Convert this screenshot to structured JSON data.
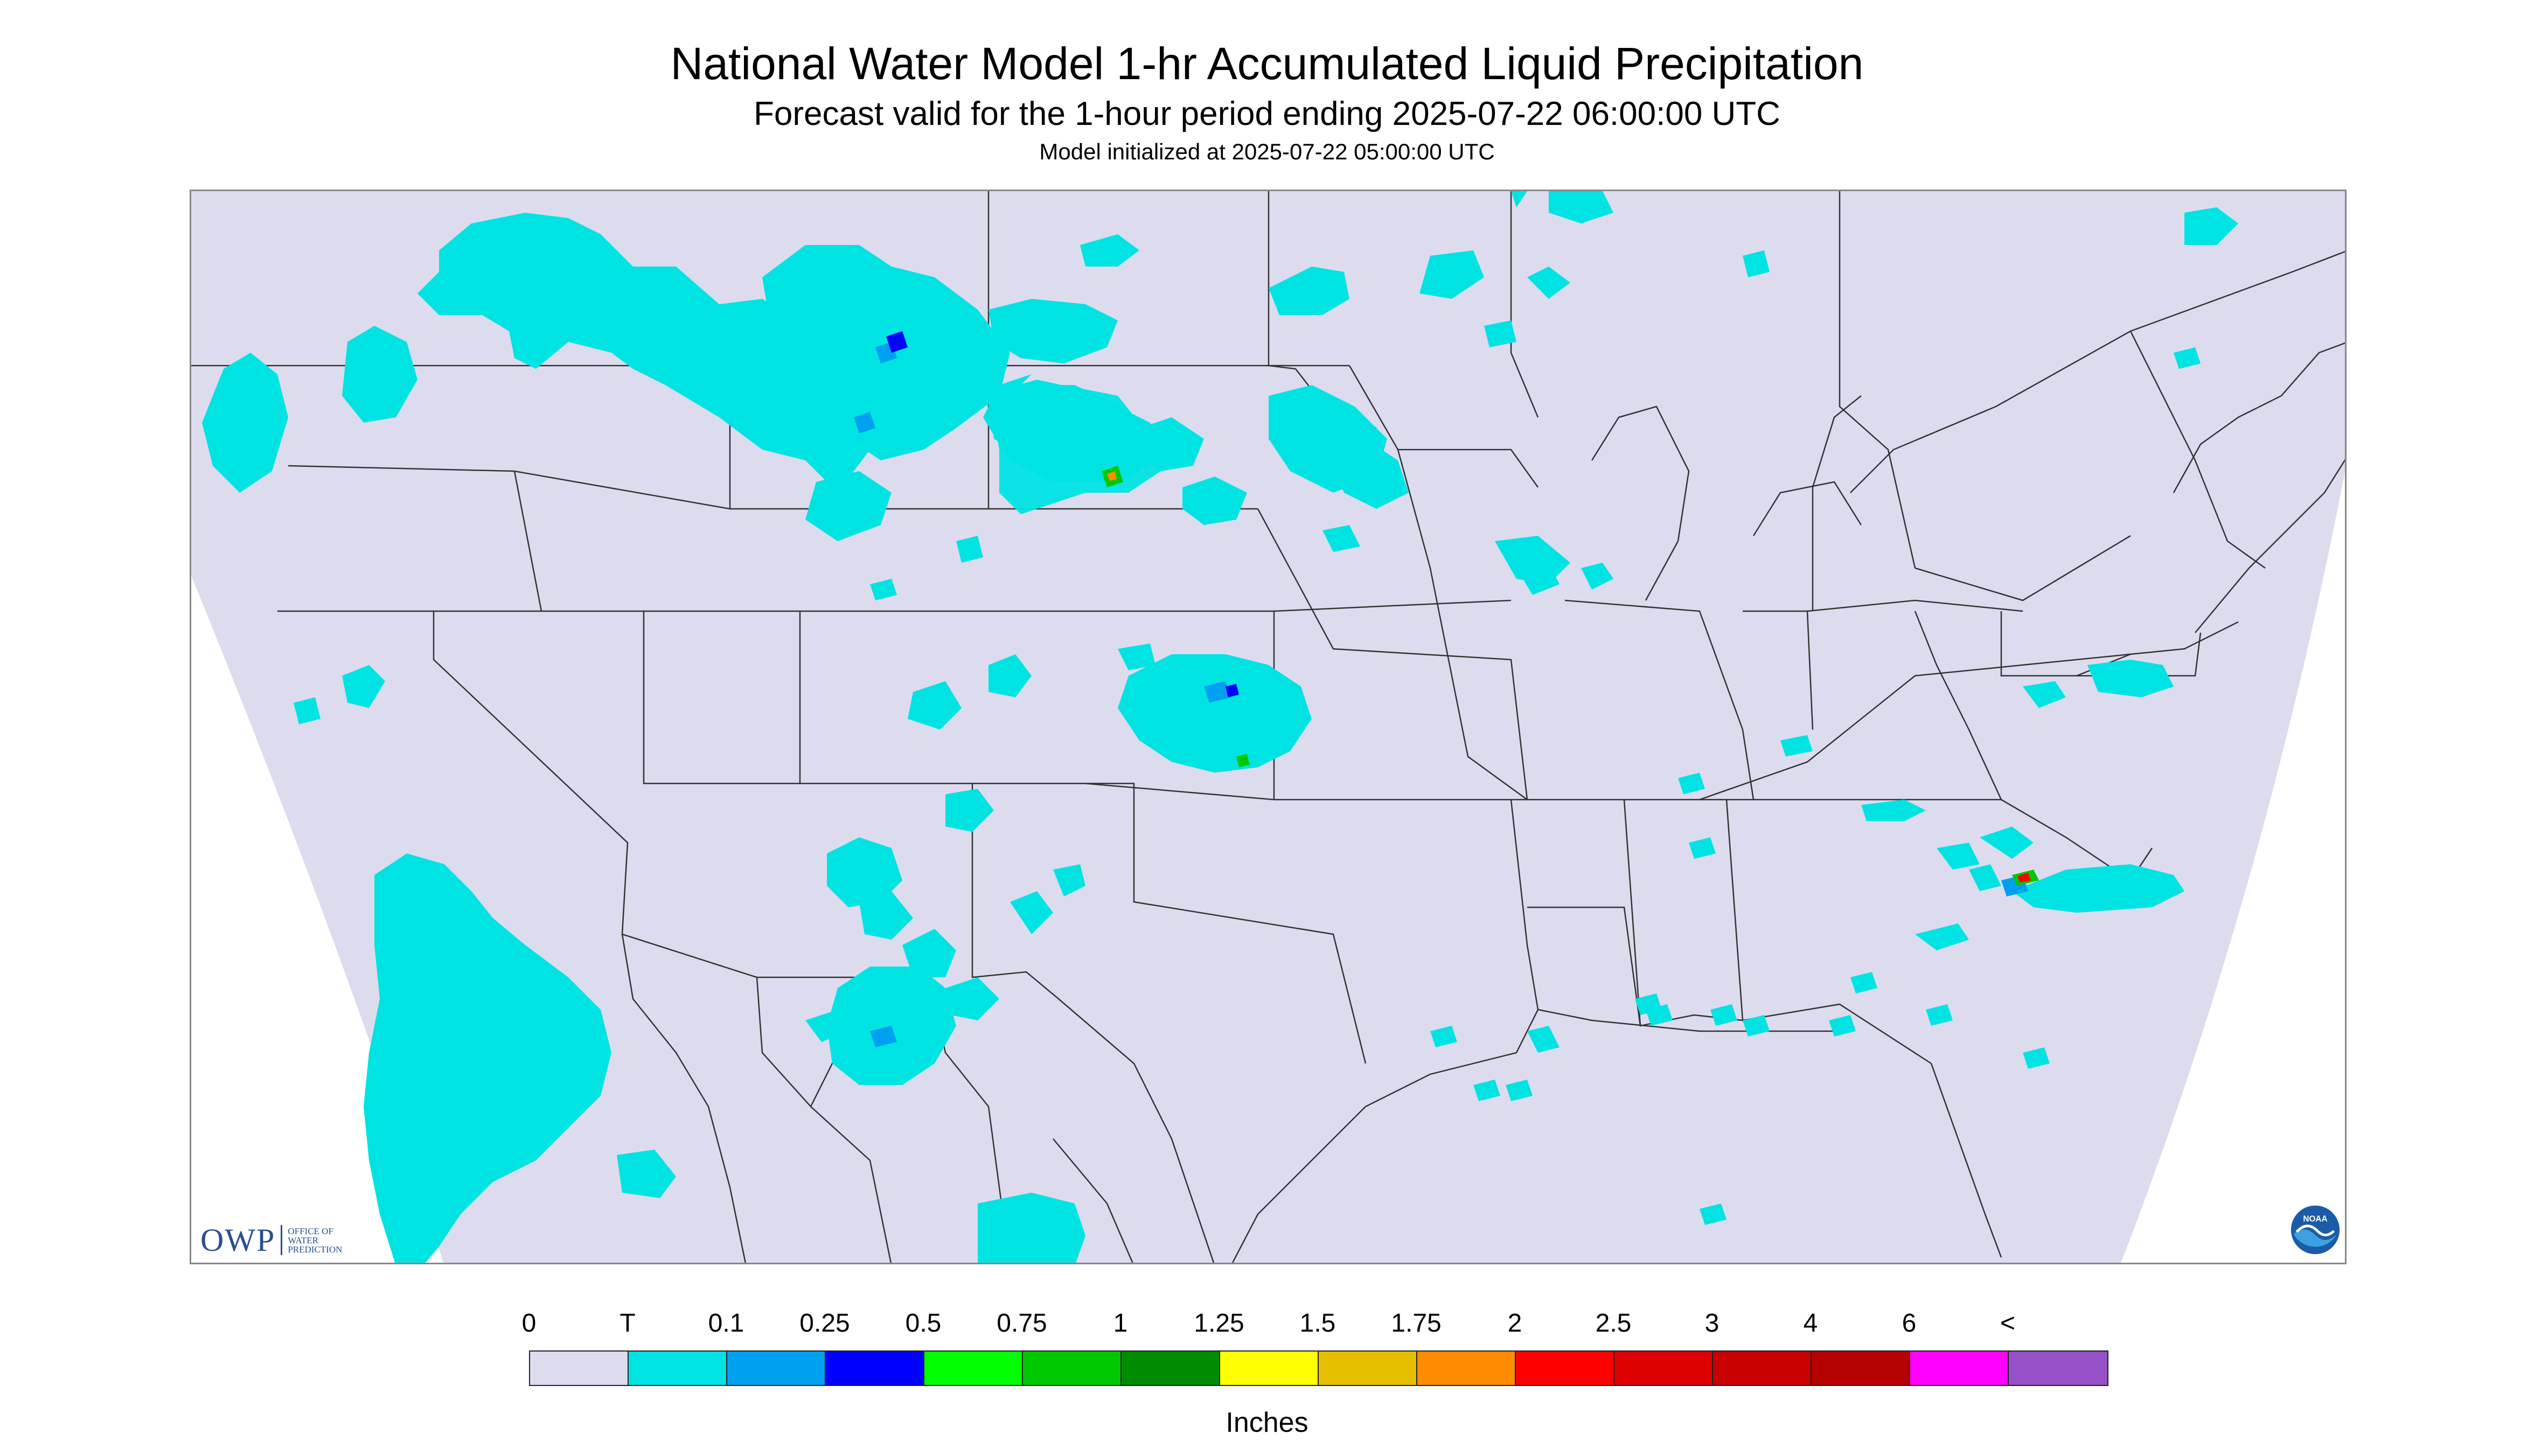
{
  "title": "National Water Model 1-hr Accumulated Liquid Precipitation",
  "subtitle": "Forecast valid for the 1-hour period ending 2025-07-22 06:00:00 UTC",
  "init_text": "Model initialized at 2025-07-22 05:00:00 UTC",
  "logos": {
    "owp_mark": "OWP",
    "owp_text": [
      "OFFICE OF",
      "WATER",
      "PREDICTION"
    ],
    "noaa_text": "NOAA"
  },
  "map": {
    "domain_color": "#dcdcee",
    "outside_color": "#ffffff",
    "boundary_color": "#333333",
    "precip_trace_color": "#00e3e3"
  },
  "legend": {
    "labels": [
      "0",
      "T",
      "0.1",
      "0.25",
      "0.5",
      "0.75",
      "1",
      "1.25",
      "1.5",
      "1.75",
      "2",
      "2.5",
      "3",
      "4",
      "6",
      "<"
    ],
    "colors": [
      "#dcdcee",
      "#00e3e3",
      "#00a0f0",
      "#0000ff",
      "#00ff00",
      "#00c800",
      "#008c00",
      "#ffff00",
      "#e6be00",
      "#ff8c00",
      "#ff0000",
      "#dc0000",
      "#c80000",
      "#b40000",
      "#ff00ff",
      "#9650c8"
    ],
    "units": "Inches"
  }
}
